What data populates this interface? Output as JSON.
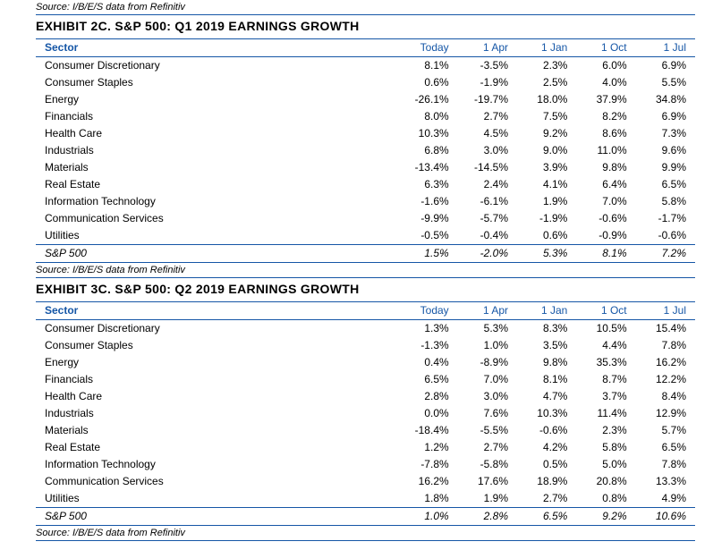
{
  "sourceText": "Source: I/B/E/S data from Refinitiv",
  "colors": {
    "accent": "#1556a6",
    "text": "#000000",
    "bg": "#ffffff"
  },
  "headers": [
    "Sector",
    "Today",
    "1 Apr",
    "1 Jan",
    "1 Oct",
    "1 Jul"
  ],
  "tables": [
    {
      "title": "EXHIBIT 2C.  S&P 500: Q1 2019 EARNINGS GROWTH",
      "rows": [
        [
          "Consumer Discretionary",
          "8.1%",
          "-3.5%",
          "2.3%",
          "6.0%",
          "6.9%"
        ],
        [
          "Consumer Staples",
          "0.6%",
          "-1.9%",
          "2.5%",
          "4.0%",
          "5.5%"
        ],
        [
          "Energy",
          "-26.1%",
          "-19.7%",
          "18.0%",
          "37.9%",
          "34.8%"
        ],
        [
          "Financials",
          "8.0%",
          "2.7%",
          "7.5%",
          "8.2%",
          "6.9%"
        ],
        [
          "Health Care",
          "10.3%",
          "4.5%",
          "9.2%",
          "8.6%",
          "7.3%"
        ],
        [
          "Industrials",
          "6.8%",
          "3.0%",
          "9.0%",
          "11.0%",
          "9.6%"
        ],
        [
          "Materials",
          "-13.4%",
          "-14.5%",
          "3.9%",
          "9.8%",
          "9.9%"
        ],
        [
          "Real Estate",
          "6.3%",
          "2.4%",
          "4.1%",
          "6.4%",
          "6.5%"
        ],
        [
          "Information Technology",
          "-1.6%",
          "-6.1%",
          "1.9%",
          "7.0%",
          "5.8%"
        ],
        [
          "Communication Services",
          "-9.9%",
          "-5.7%",
          "-1.9%",
          "-0.6%",
          "-1.7%"
        ],
        [
          "Utilities",
          "-0.5%",
          "-0.4%",
          "0.6%",
          "-0.9%",
          "-0.6%"
        ]
      ],
      "total": [
        "S&P 500",
        "1.5%",
        "-2.0%",
        "5.3%",
        "8.1%",
        "7.2%"
      ]
    },
    {
      "title": "EXHIBIT 3C.  S&P 500: Q2 2019 EARNINGS GROWTH",
      "rows": [
        [
          "Consumer Discretionary",
          "1.3%",
          "5.3%",
          "8.3%",
          "10.5%",
          "15.4%"
        ],
        [
          "Consumer Staples",
          "-1.3%",
          "1.0%",
          "3.5%",
          "4.4%",
          "7.8%"
        ],
        [
          "Energy",
          "0.4%",
          "-8.9%",
          "9.8%",
          "35.3%",
          "16.2%"
        ],
        [
          "Financials",
          "6.5%",
          "7.0%",
          "8.1%",
          "8.7%",
          "12.2%"
        ],
        [
          "Health Care",
          "2.8%",
          "3.0%",
          "4.7%",
          "3.7%",
          "8.4%"
        ],
        [
          "Industrials",
          "0.0%",
          "7.6%",
          "10.3%",
          "11.4%",
          "12.9%"
        ],
        [
          "Materials",
          "-18.4%",
          "-5.5%",
          "-0.6%",
          "2.3%",
          "5.7%"
        ],
        [
          "Real Estate",
          "1.2%",
          "2.7%",
          "4.2%",
          "5.8%",
          "6.5%"
        ],
        [
          "Information Technology",
          "-7.8%",
          "-5.8%",
          "0.5%",
          "5.0%",
          "7.8%"
        ],
        [
          "Communication Services",
          "16.2%",
          "17.6%",
          "18.9%",
          "20.8%",
          "13.3%"
        ],
        [
          "Utilities",
          "1.8%",
          "1.9%",
          "2.7%",
          "0.8%",
          "4.9%"
        ]
      ],
      "total": [
        "S&P 500",
        "1.0%",
        "2.8%",
        "6.5%",
        "9.2%",
        "10.6%"
      ]
    }
  ]
}
